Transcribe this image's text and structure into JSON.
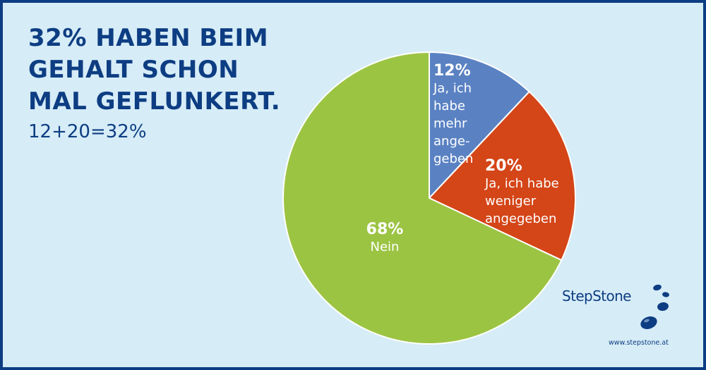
{
  "headline": {
    "line1": "32% HABEN BEIM",
    "line2": "GEHALT SCHON",
    "line3": "MAL GEFLUNKERT."
  },
  "subline": "12+20=32%",
  "chart_data": {
    "type": "pie",
    "start_angle_deg": 0,
    "direction": "clockwise",
    "slices": [
      {
        "pct_label": "12%",
        "value": 12,
        "label_lines": [
          "Ja, ich",
          "habe",
          "mehr",
          "ange-",
          "geben"
        ],
        "color": "#5a82c3"
      },
      {
        "pct_label": "20%",
        "value": 20,
        "label_lines": [
          "Ja, ich habe",
          "weniger",
          "angegeben"
        ],
        "color": "#d44517"
      },
      {
        "pct_label": "68%",
        "value": 68,
        "label_lines": [
          "Nein"
        ],
        "color": "#9cc443"
      }
    ]
  },
  "logo": {
    "name": "StepStone",
    "url": "www.stepstone.at",
    "color": "#0d3d82"
  },
  "colors": {
    "background": "#d6ecf7",
    "border": "#0d3d82",
    "text": "#0d3d82"
  }
}
